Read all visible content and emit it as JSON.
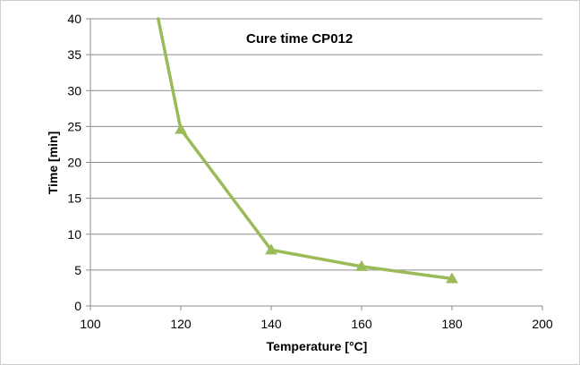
{
  "chart_data": {
    "type": "line",
    "title": "Cure time CP012",
    "xlabel": "Temperature [°C]",
    "ylabel": "Time [min]",
    "xlim": [
      100,
      200
    ],
    "ylim": [
      0,
      40
    ],
    "x_ticks": [
      100,
      120,
      140,
      160,
      180,
      200
    ],
    "y_ticks": [
      0,
      5,
      10,
      15,
      20,
      25,
      30,
      35,
      40
    ],
    "grid": "horizontal",
    "legend": "none",
    "series": [
      {
        "color": "#9BBB59",
        "marker": "triangle",
        "points": [
          {
            "x": 115,
            "y": 40,
            "marker": false
          },
          {
            "x": 120,
            "y": 24.6,
            "marker": true
          },
          {
            "x": 140,
            "y": 7.8,
            "marker": true
          },
          {
            "x": 160,
            "y": 5.5,
            "marker": true
          },
          {
            "x": 180,
            "y": 3.8,
            "marker": true
          }
        ]
      }
    ]
  }
}
